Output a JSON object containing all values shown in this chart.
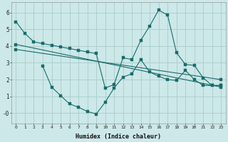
{
  "background_color": "#cce8e8",
  "grid_color": "#aacccc",
  "line_color": "#1a6b6b",
  "xlabel": "Humidex (Indice chaleur)",
  "xlim": [
    -0.5,
    23.5
  ],
  "ylim": [
    -0.6,
    6.6
  ],
  "xticks": [
    0,
    1,
    2,
    3,
    4,
    5,
    6,
    7,
    8,
    9,
    10,
    11,
    12,
    13,
    14,
    15,
    16,
    17,
    18,
    19,
    20,
    21,
    22,
    23
  ],
  "yticks": [
    0,
    1,
    2,
    3,
    4,
    5,
    6
  ],
  "ytick_labels": [
    "-0",
    "1",
    "2",
    "3",
    "4",
    "5",
    "6"
  ],
  "line1_x": [
    0,
    1,
    2,
    3,
    4,
    5,
    6,
    7,
    8,
    9,
    10,
    11,
    12,
    13,
    14,
    15,
    16,
    17,
    18,
    19,
    20,
    21,
    22,
    23
  ],
  "line1_y": [
    5.45,
    4.75,
    4.25,
    4.15,
    4.05,
    3.95,
    3.85,
    3.75,
    3.65,
    3.55,
    1.5,
    1.7,
    3.3,
    3.2,
    4.35,
    5.2,
    6.15,
    5.85,
    3.6,
    2.9,
    2.85,
    2.1,
    1.65,
    1.65
  ],
  "line2_x": [
    0,
    23
  ],
  "line2_y": [
    4.1,
    1.55
  ],
  "line3_x": [
    0,
    23
  ],
  "line3_y": [
    3.8,
    2.0
  ],
  "line4_x": [
    3,
    4,
    5,
    6,
    7,
    8,
    9,
    10,
    11,
    12,
    13,
    14,
    15,
    16,
    17,
    18,
    19,
    20,
    21,
    22,
    23
  ],
  "line4_y": [
    2.8,
    1.55,
    1.05,
    0.55,
    0.35,
    0.1,
    -0.05,
    0.65,
    1.5,
    2.15,
    2.35,
    3.2,
    2.45,
    2.2,
    2.0,
    1.95,
    2.55,
    2.0,
    1.65,
    1.65,
    1.65
  ]
}
